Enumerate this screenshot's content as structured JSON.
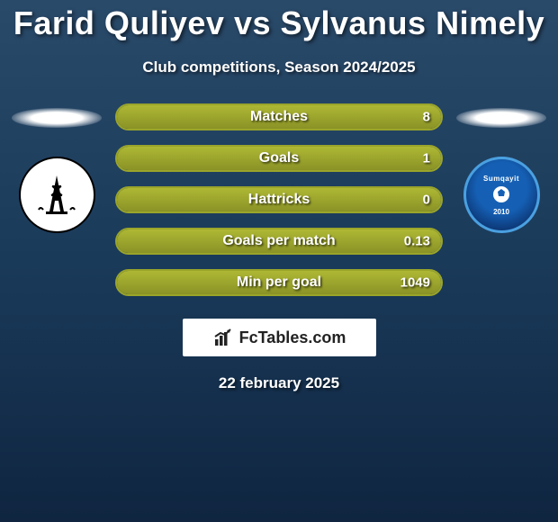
{
  "title": "Farid Quliyev vs Sylvanus Nimely",
  "subtitle": "Club competitions, Season 2024/2025",
  "date": "22 february 2025",
  "brand": "FcTables.com",
  "colors": {
    "background_top": "#2a4a6a",
    "background_bottom": "#0f2540",
    "bar_fill": "#aeb834",
    "bar_border": "#9aa52a",
    "bar_bg": "#394656",
    "text": "#ffffff"
  },
  "left_team": {
    "name": "Neftchi",
    "crest_bg": "#ffffff"
  },
  "right_team": {
    "name": "Sumqayit",
    "year": "2010",
    "crest_bg": "#1560b5"
  },
  "stats": [
    {
      "label": "Matches",
      "value": "8",
      "fill_pct": 100
    },
    {
      "label": "Goals",
      "value": "1",
      "fill_pct": 100
    },
    {
      "label": "Hattricks",
      "value": "0",
      "fill_pct": 100
    },
    {
      "label": "Goals per match",
      "value": "0.13",
      "fill_pct": 100
    },
    {
      "label": "Min per goal",
      "value": "1049",
      "fill_pct": 100
    }
  ]
}
